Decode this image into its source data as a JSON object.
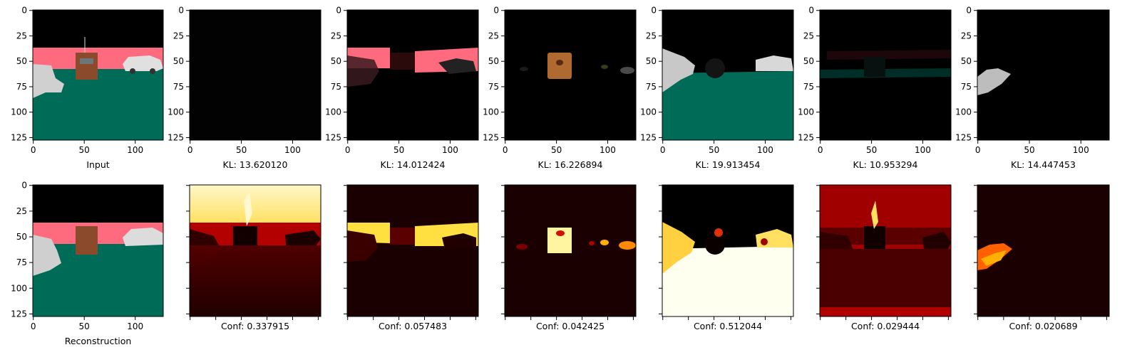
{
  "figure": {
    "tick_values": [
      0,
      25,
      50,
      75,
      100,
      125
    ],
    "x_tick_values": [
      0,
      50,
      100
    ],
    "image_size": 128,
    "row1_labels": [
      "Input",
      "KL: 13.620120",
      "KL: 14.012424",
      "KL: 16.226894",
      "KL: 19.913454",
      "KL: 10.953294",
      "KL: 14.447453"
    ],
    "row2_labels": [
      "Reconstruction",
      "Conf: 0.337915",
      "Conf: 0.057483",
      "Conf: 0.042425",
      "Conf: 0.512044",
      "Conf: 0.029444",
      "Conf: 0.020689"
    ],
    "colors": {
      "sky": "#000000",
      "ground": "#006b56",
      "wall_pink": "#ff6b7e",
      "box_brown": "#8b4a2b",
      "car_white": "#d6d6d6",
      "heat_dark": "#1a0000",
      "heat_red": "#b30000",
      "heat_orange": "#ff5a00",
      "heat_yellow": "#ffff40",
      "heat_white": "#fffff0"
    }
  }
}
